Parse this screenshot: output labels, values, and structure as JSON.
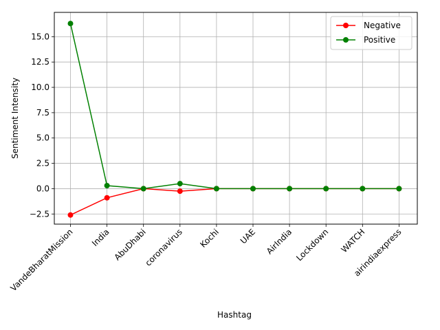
{
  "chart_data": {
    "type": "line",
    "title": "",
    "xlabel": "Hashtag",
    "ylabel": "Sentiment Intensity",
    "categories": [
      "VandeBharatMission",
      "India",
      "AbuDhabi",
      "coronavirus",
      "Kochi",
      "UAE",
      "AirIndia",
      "Lockdown",
      "WATCH",
      "airindiaexpress"
    ],
    "series": [
      {
        "name": "Negative",
        "color": "#ff0000",
        "values": [
          -2.6,
          -0.9,
          0.0,
          -0.25,
          0.0,
          0.0,
          0.0,
          0.0,
          0.0,
          0.0
        ]
      },
      {
        "name": "Positive",
        "color": "#008000",
        "values": [
          16.3,
          0.3,
          0.0,
          0.5,
          0.0,
          0.0,
          0.0,
          0.0,
          0.0,
          0.0
        ]
      }
    ],
    "yticks": [
      "−2.5",
      "0.0",
      "2.5",
      "5.0",
      "7.5",
      "10.0",
      "12.5",
      "15.0"
    ],
    "ylim": [
      -3.5,
      17.4
    ],
    "grid": true,
    "legend_position": "top-right"
  }
}
